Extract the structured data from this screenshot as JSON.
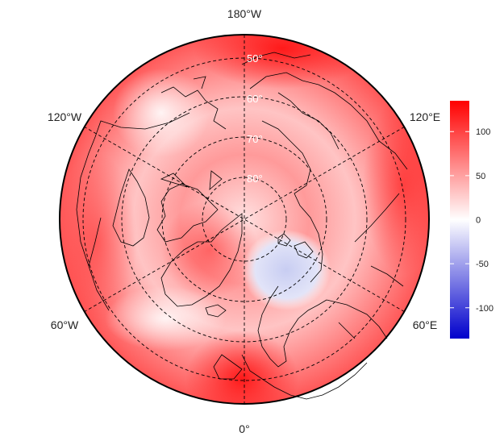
{
  "map": {
    "projection": "north-polar-stereographic",
    "longitude_labels": {
      "top": "180°W",
      "bottom": "0°",
      "upper_left": "120°W",
      "upper_right": "120°E",
      "lower_left": "60°W",
      "lower_right": "60°E"
    },
    "latitude_labels": [
      "50°",
      "60°",
      "70°",
      "80°"
    ],
    "colors": {
      "land_outline": "#000000",
      "graticule": "#000000",
      "frame": "#000000"
    }
  },
  "colorbar": {
    "ticks": [
      "100",
      "50",
      "0",
      "-50",
      "-100"
    ],
    "tick_values": [
      100,
      50,
      0,
      -50,
      -100
    ],
    "range": [
      -135,
      135
    ],
    "colors": {
      "low": "#0000cc",
      "mid": "#ffffff",
      "high": "#ff0000"
    }
  }
}
